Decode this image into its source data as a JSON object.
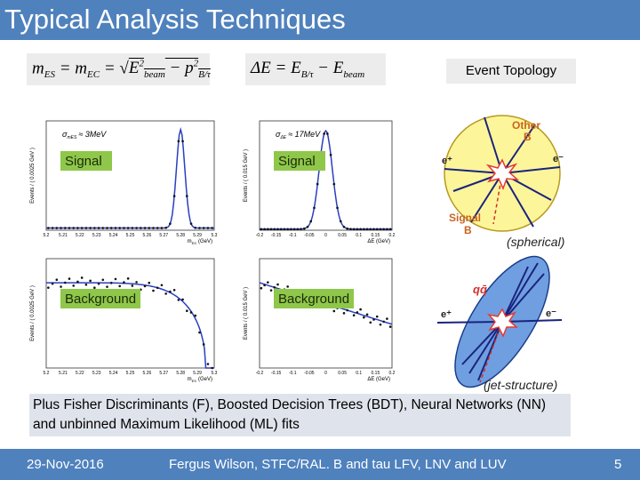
{
  "header": {
    "title": "Typical Analysis Techniques"
  },
  "formulas": [
    {
      "parts": [
        "m",
        "ES",
        " = m",
        "EC",
        " = ",
        "E",
        "2",
        "beam",
        " − p",
        "2",
        "B/τ"
      ]
    },
    {
      "parts": [
        "ΔE = E",
        "B/τ",
        " − E",
        "beam"
      ]
    }
  ],
  "topology": {
    "title": "Event Topology",
    "spherical": {
      "other_b": [
        "Other",
        "B"
      ],
      "signal_b": [
        "Signal",
        "B"
      ],
      "e_plus": "e⁺",
      "e_minus": "e⁻",
      "caption": "(spherical)"
    },
    "jet": {
      "qq": "qq̄",
      "e_plus": "e⁺",
      "e_minus": "e⁻",
      "caption": "(jet-structure)"
    }
  },
  "plots": [
    {
      "label": "Signal",
      "resolution": [
        "σ",
        "mES",
        "≈ 3MeV"
      ],
      "ylabel": "Events / ( 0.0025 GeV )",
      "xlabel": [
        "m",
        "ES",
        "(GeV)"
      ],
      "xticks": [
        "5.2",
        "5.21",
        "5.22",
        "5.23",
        "5.24",
        "5.25",
        "5.26",
        "5.27",
        "5.28",
        "5.29",
        "5.3"
      ]
    },
    {
      "label": "Signal",
      "resolution": [
        "σ",
        "ΔE",
        "≈ 17MeV"
      ],
      "ylabel": "Events / ( 0.015 GeV )",
      "xlabel": [
        "ΔE (GeV)"
      ],
      "xticks": [
        "-0.2",
        "-0.15",
        "-0.1",
        "-0.05",
        "0",
        "0.05",
        "0.1",
        "0.15",
        "0.2"
      ]
    },
    {
      "label": "Background",
      "ylabel": "Events / ( 0.0025 GeV )",
      "xlabel": [
        "m",
        "ES",
        "(GeV)"
      ],
      "xticks": [
        "5.2",
        "5.21",
        "5.22",
        "5.23",
        "5.24",
        "5.25",
        "5.26",
        "5.27",
        "5.28",
        "5.29",
        "5.3"
      ]
    },
    {
      "label": "Background",
      "ylabel": "Events / ( 0.015 GeV )",
      "xlabel": [
        "ΔE (GeV)"
      ],
      "xticks": [
        "-0.2",
        "-0.15",
        "-0.1",
        "-0.05",
        "0",
        "0.05",
        "0.1",
        "0.15",
        "0.2"
      ]
    }
  ],
  "note": "Plus Fisher Discriminants (F), Boosted Decision Trees (BDT), Neural Networks (NN) and unbinned Maximum Likelihood (ML) fits",
  "footer": {
    "date": "29-Nov-2016",
    "center": "Fergus Wilson, STFC/RAL. B and tau LFV, LNV and LUV",
    "page": "5"
  }
}
